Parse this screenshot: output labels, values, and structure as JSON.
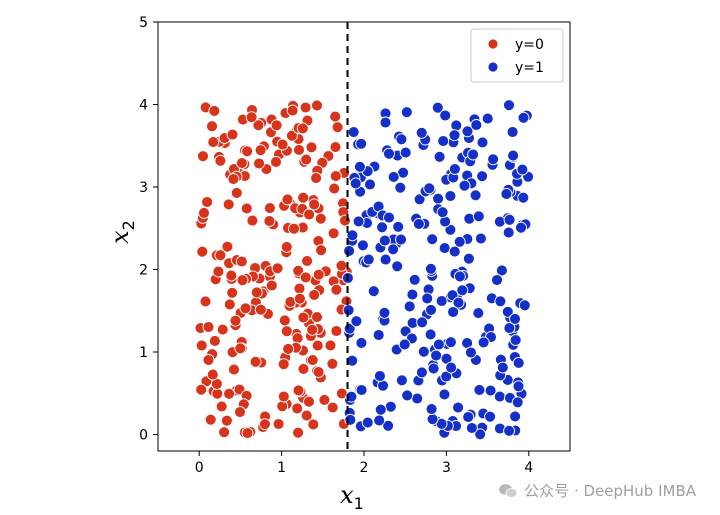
{
  "chart_data": {
    "type": "scatter",
    "title": "",
    "xlabel": "x",
    "xlabel_sub": "1",
    "ylabel": "x",
    "ylabel_sub": "2",
    "xlim": [
      -0.5,
      4.5
    ],
    "ylim": [
      -0.2,
      5.0
    ],
    "xticks": [
      "0",
      "1",
      "2",
      "3",
      "4"
    ],
    "yticks": [
      "0",
      "1",
      "2",
      "3",
      "4",
      "5"
    ],
    "threshold_x": 1.8,
    "grid": false,
    "legend_position": "top-right",
    "series": [
      {
        "name": "y=0",
        "color": "#d8341c",
        "x_range": [
          0.0,
          1.8
        ],
        "y_range": [
          0.0,
          4.0
        ],
        "count": 240
      },
      {
        "name": "y=1",
        "color": "#1530c8",
        "x_range": [
          1.8,
          4.0
        ],
        "y_range": [
          0.0,
          4.0
        ],
        "count": 260
      }
    ]
  },
  "watermark": {
    "text": "公众号 · DeepHub IMBA",
    "icon": "wechat-icon"
  }
}
